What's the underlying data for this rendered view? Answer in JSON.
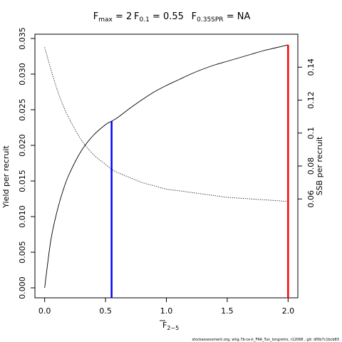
{
  "chart_data": {
    "type": "line",
    "title_parts": {
      "fmax": {
        "main": "F",
        "sub": "max",
        "value": " = 2"
      },
      "f01": {
        "main": "F",
        "sub": "0.1",
        "value": " = 0.55"
      },
      "fspr": {
        "main": "F",
        "sub": "0.35SPR",
        "value": " = NA"
      }
    },
    "xlabel": {
      "main": "F",
      "sub": "2−5"
    },
    "ylabel_left": "Yield per recruit",
    "ylabel_right": "SSB per recruit",
    "xlim": [
      -0.08,
      2.08
    ],
    "ylim_left": [
      -0.0014,
      0.0356
    ],
    "ylim_right": [
      0.0,
      0.16
    ],
    "x_ticks": [
      {
        "v": 0.0,
        "label": "0.0"
      },
      {
        "v": 0.5,
        "label": "0.5"
      },
      {
        "v": 1.0,
        "label": "1.0"
      },
      {
        "v": 1.5,
        "label": "1.5"
      },
      {
        "v": 2.0,
        "label": "2.0"
      }
    ],
    "y_left_ticks": [
      {
        "v": 0.0,
        "label": "0.000"
      },
      {
        "v": 0.005,
        "label": "0.005"
      },
      {
        "v": 0.01,
        "label": "0.010"
      },
      {
        "v": 0.015,
        "label": "0.015"
      },
      {
        "v": 0.02,
        "label": "0.020"
      },
      {
        "v": 0.025,
        "label": "0.025"
      },
      {
        "v": 0.03,
        "label": "0.030"
      },
      {
        "v": 0.035,
        "label": "0.035"
      }
    ],
    "y_right_ticks": [
      {
        "v": 0.06,
        "label": "0.06"
      },
      {
        "v": 0.08,
        "label": "0.08"
      },
      {
        "v": 0.1,
        "label": "0.1"
      },
      {
        "v": 0.12,
        "label": "0.12"
      },
      {
        "v": 0.14,
        "label": "0.14"
      }
    ],
    "series": [
      {
        "key": "ypr",
        "axis": "left",
        "style": "solid",
        "x": [
          0.0,
          0.05,
          0.1,
          0.15,
          0.2,
          0.3,
          0.4,
          0.5,
          0.55,
          0.6,
          0.7,
          0.8,
          0.9,
          1.0,
          1.1,
          1.2,
          1.3,
          1.4,
          1.5,
          1.6,
          1.7,
          1.8,
          1.9,
          2.0
        ],
        "y": [
          0.0,
          0.0066,
          0.0106,
          0.0136,
          0.0159,
          0.0192,
          0.0214,
          0.0229,
          0.0234,
          0.0239,
          0.0252,
          0.0264,
          0.0275,
          0.0284,
          0.0292,
          0.03,
          0.0307,
          0.0313,
          0.0318,
          0.0323,
          0.0328,
          0.0333,
          0.0337,
          0.0341
        ]
      },
      {
        "key": "sspr",
        "axis": "right",
        "style": "dotted",
        "x": [
          0.0,
          0.05,
          0.1,
          0.15,
          0.2,
          0.3,
          0.4,
          0.5,
          0.55,
          0.6,
          0.7,
          0.8,
          0.9,
          1.0,
          1.1,
          1.2,
          1.3,
          1.4,
          1.5,
          1.6,
          1.7,
          1.8,
          1.9,
          2.0
        ],
        "y": [
          0.152,
          0.139,
          0.127,
          0.117,
          0.109,
          0.096,
          0.087,
          0.081,
          0.078,
          0.076,
          0.073,
          0.07,
          0.068,
          0.066,
          0.065,
          0.064,
          0.063,
          0.062,
          0.061,
          0.0605,
          0.06,
          0.0595,
          0.059,
          0.0585
        ]
      }
    ],
    "reference_lines": [
      {
        "key": "f01",
        "x": 0.55,
        "y_top": 0.0234,
        "color": "#0000ff"
      },
      {
        "key": "fmax",
        "x": 2.0,
        "y_top": 0.0341,
        "color": "#ff0000"
      }
    ],
    "footer": "stockassessment.org, whg.7b-ce-k_FRA_Tun_longretro, r12068 , git: df0b7c1bcb83"
  }
}
